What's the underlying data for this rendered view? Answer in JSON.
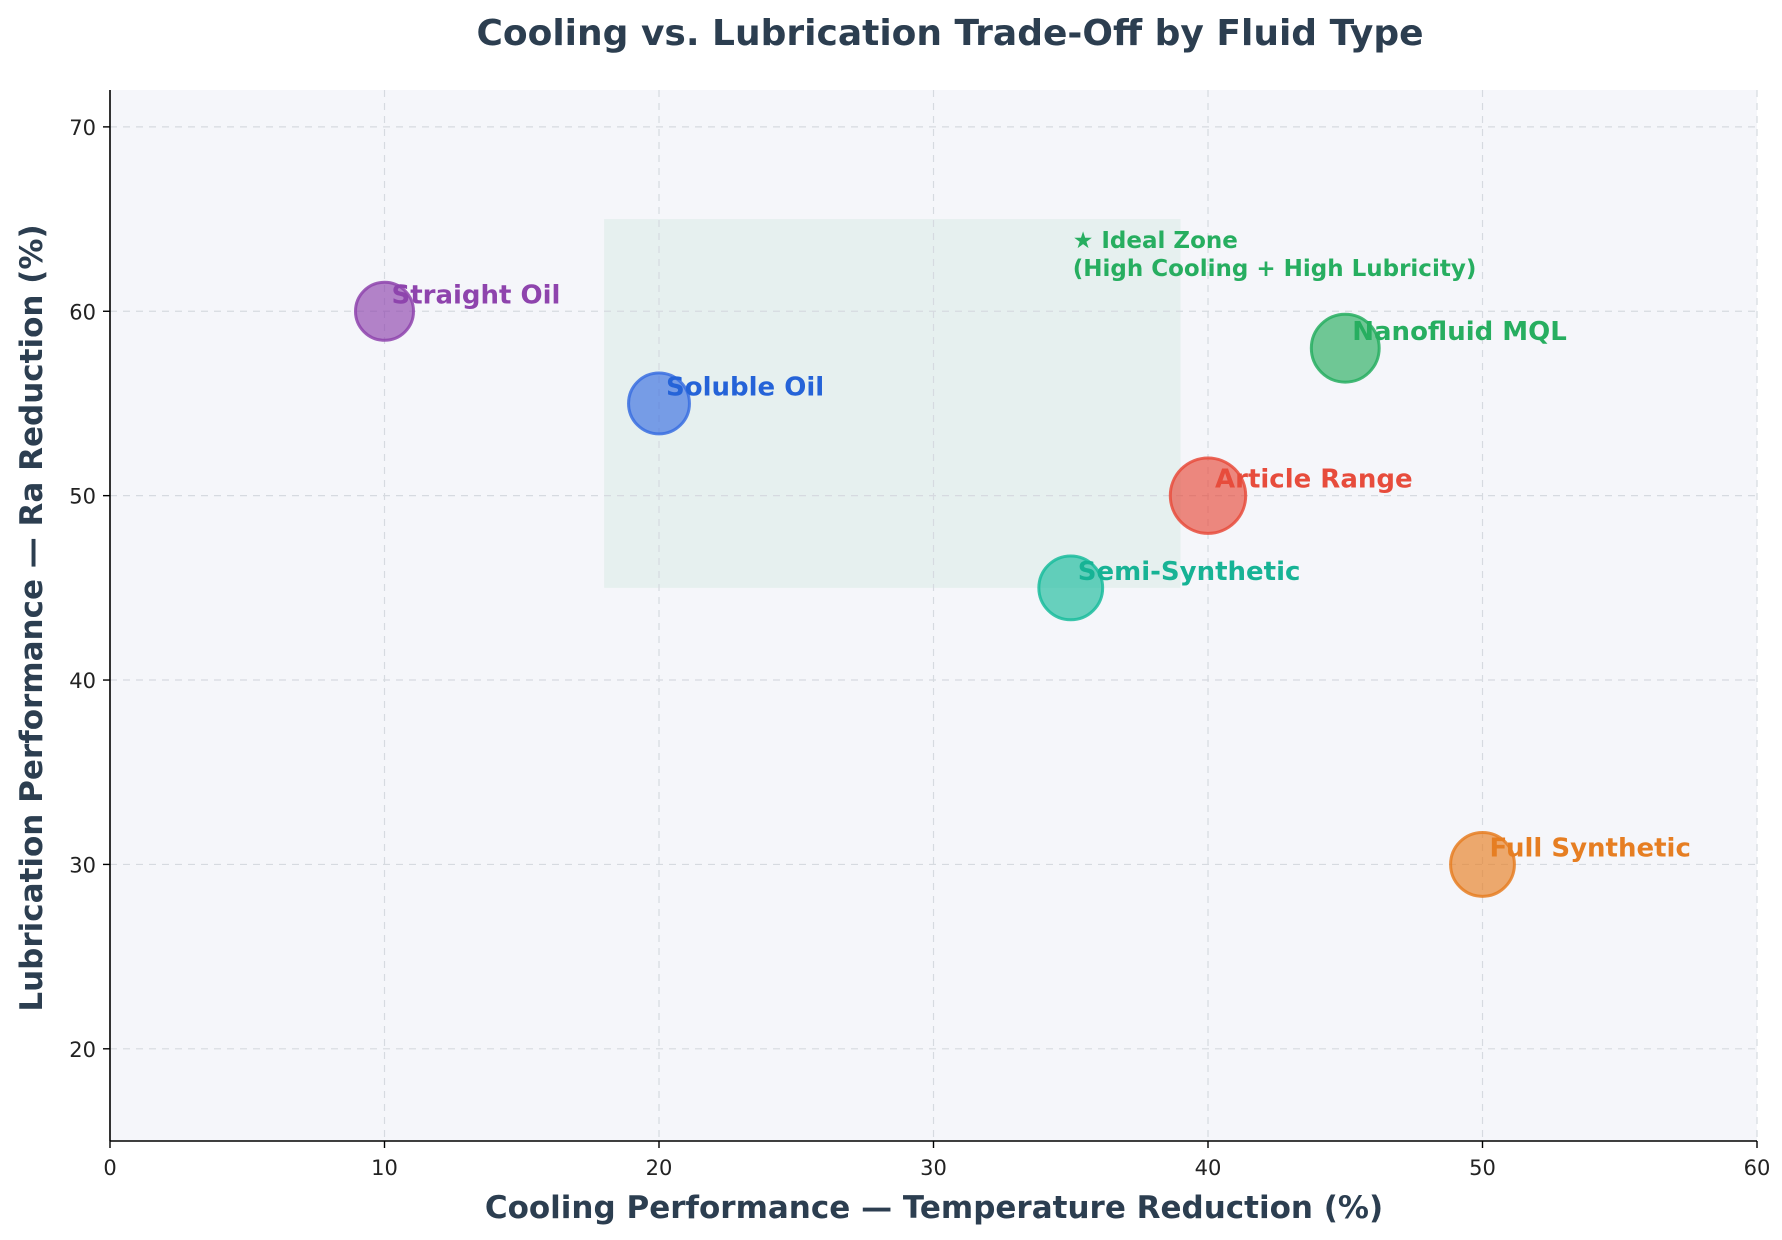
{
  "chart_data": {
    "type": "scatter",
    "title": "Cooling vs. Lubrication Trade-Off by Fluid Type",
    "xlabel": "Cooling Performance — Temperature Reduction (%)",
    "ylabel": "Lubrication Performance — Ra Reduction (%)",
    "xlim": [
      0,
      60
    ],
    "ylim": [
      15,
      72
    ],
    "x_ticks": [
      0,
      10,
      20,
      30,
      40,
      50,
      60
    ],
    "y_ticks": [
      20,
      30,
      40,
      50,
      60,
      70
    ],
    "grid": true,
    "points": [
      {
        "name": "Straight Oil",
        "x": 10,
        "y": 60,
        "color": "#8e44ad",
        "bubble_size": 1.0
      },
      {
        "name": "Soluble Oil",
        "x": 20,
        "y": 55,
        "color": "#3a6fe0",
        "bubble_size": 1.05
      },
      {
        "name": "Semi-Synthetic",
        "x": 35,
        "y": 45,
        "color": "#1abc9c",
        "bubble_size": 1.1
      },
      {
        "name": "Article Range",
        "x": 40,
        "y": 50,
        "color": "#e74c3c",
        "bubble_size": 1.3
      },
      {
        "name": "Nanofluid MQL",
        "x": 45,
        "y": 58,
        "color": "#27ae60",
        "bubble_size": 1.17
      },
      {
        "name": "Full Synthetic",
        "x": 50,
        "y": 30,
        "color": "#e67e22",
        "bubble_size": 1.1
      }
    ],
    "label_colors": {
      "Straight Oil": "#8e44ad",
      "Soluble Oil": "#2563d8",
      "Semi-Synthetic": "#17b395",
      "Article Range": "#e74c3c",
      "Nanofluid MQL": "#27ae60",
      "Full Synthetic": "#e67e22"
    },
    "ideal_zone": {
      "x_range": [
        18,
        39
      ],
      "y_range": [
        45,
        65
      ],
      "label_line1": "★ Ideal Zone",
      "label_line2": "(High Cooling + High Lubricity)",
      "color": "#27ae60"
    },
    "plot_background": "#f5f6fa",
    "text_color": "#2c3e50"
  }
}
